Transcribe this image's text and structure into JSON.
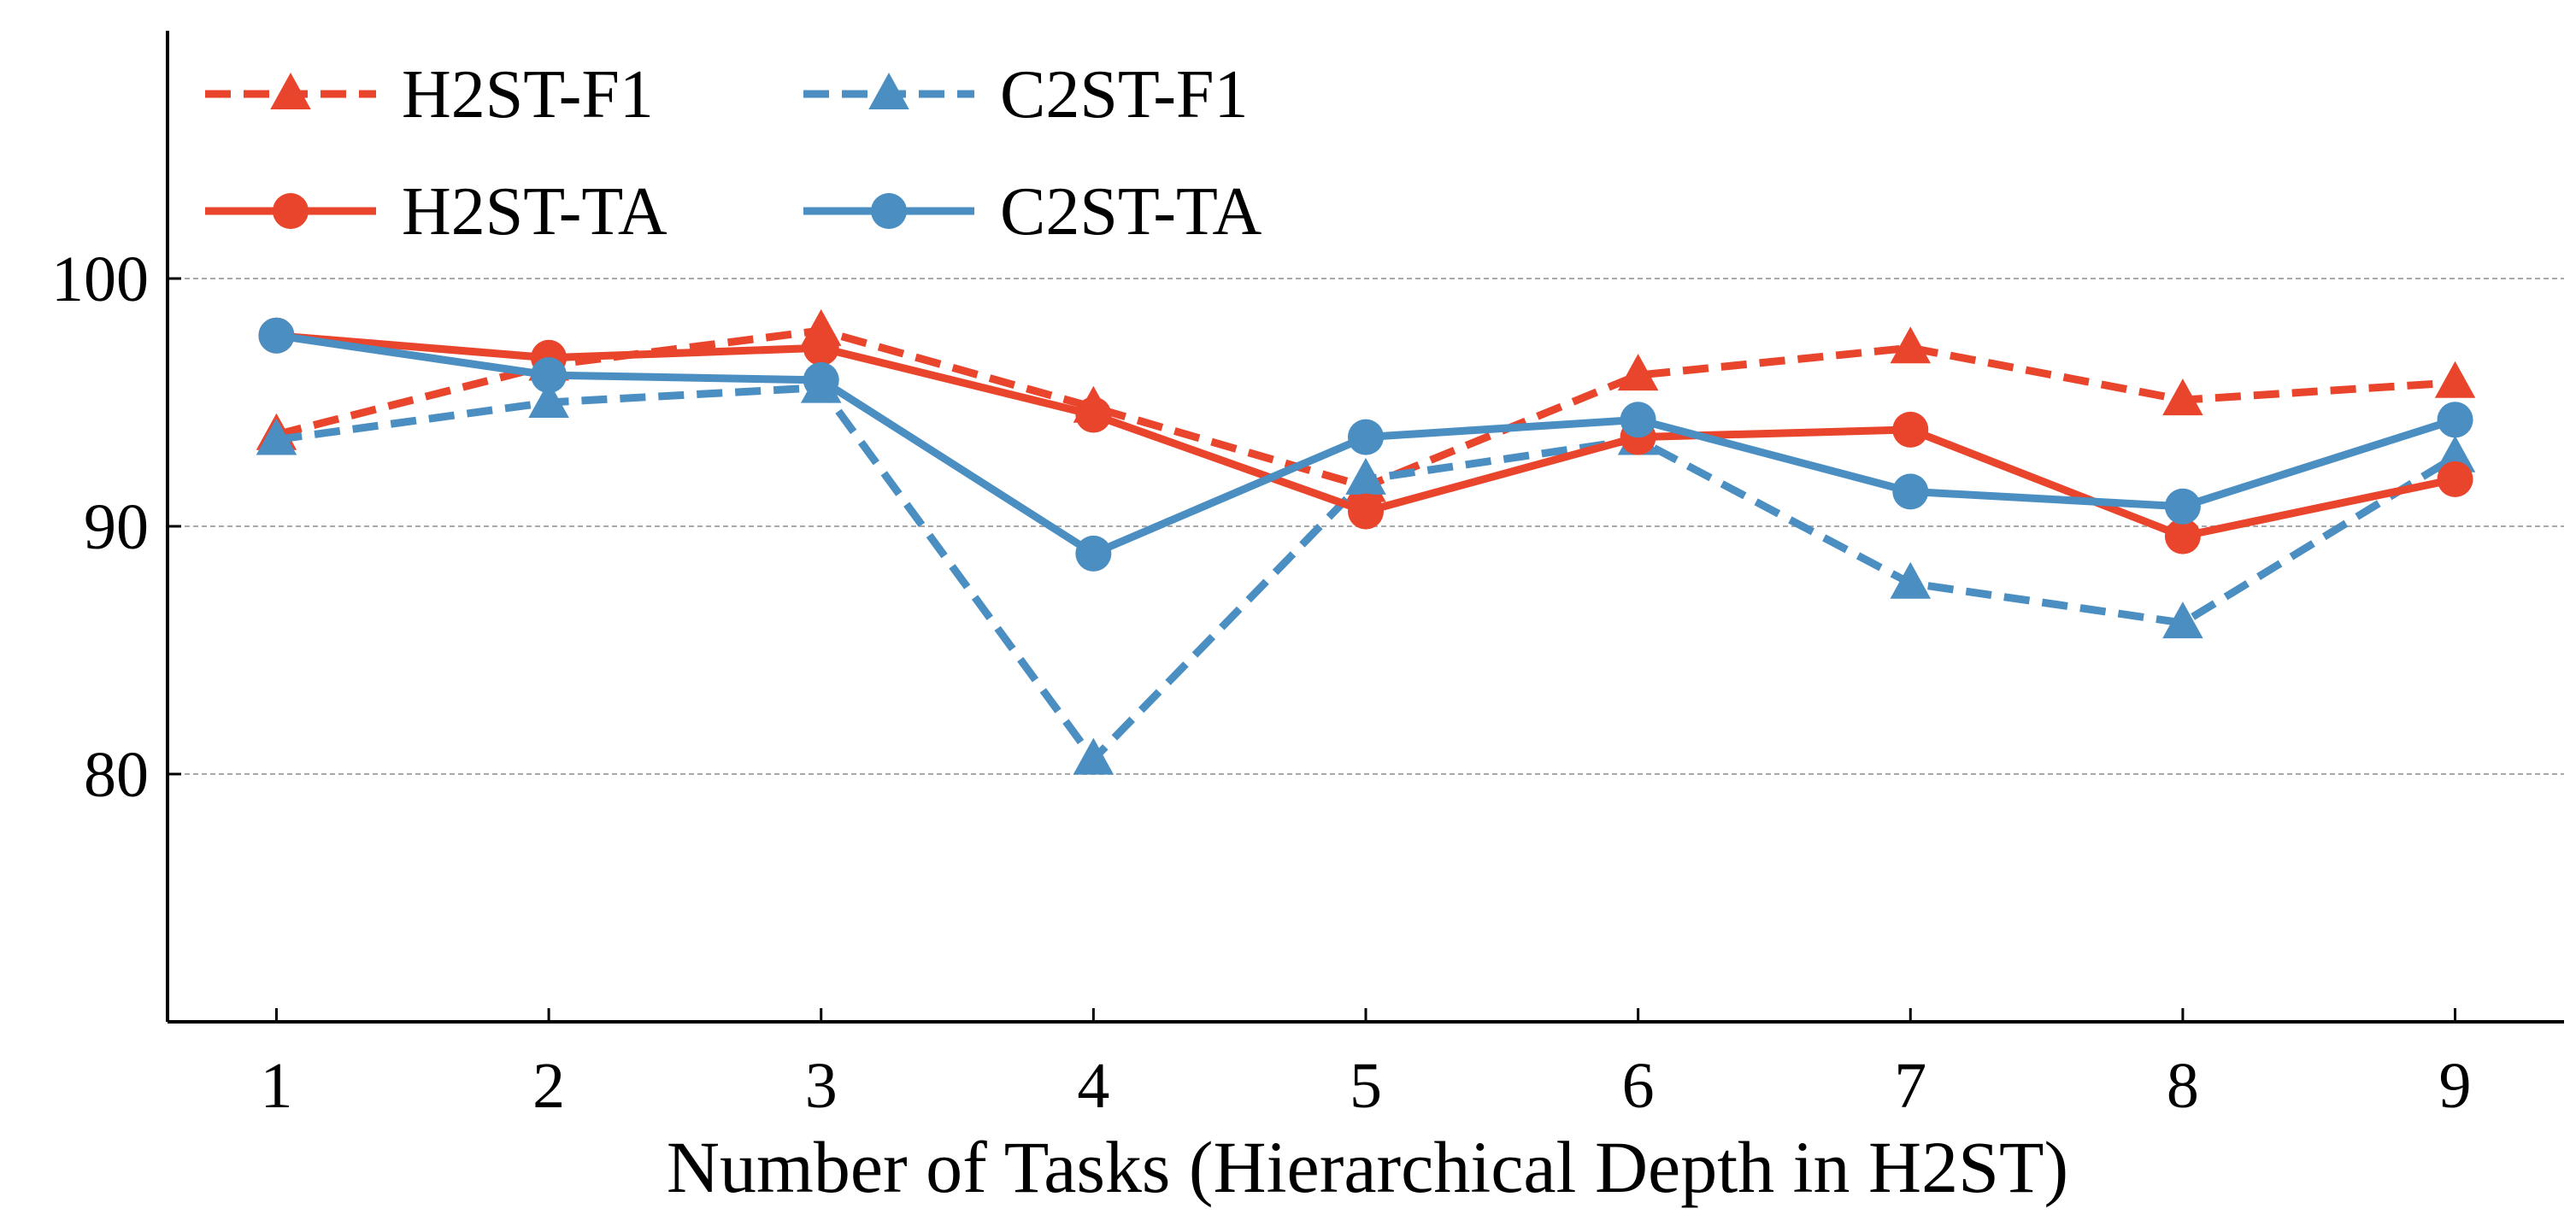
{
  "chart_data": {
    "type": "line",
    "title": "",
    "xlabel": "Number of Tasks (Hierarchical Depth in H2ST)",
    "ylabel": "",
    "x": [
      1,
      2,
      3,
      4,
      5,
      6,
      7,
      8,
      9
    ],
    "x_tick_labels": [
      "1",
      "2",
      "3",
      "4",
      "5",
      "6",
      "7",
      "8",
      "9"
    ],
    "xlim": [
      0.6,
      9.4
    ],
    "ylim": [
      70,
      110
    ],
    "y_ticks": [
      80,
      90,
      100
    ],
    "y_tick_labels": [
      "80",
      "90",
      "100"
    ],
    "grid": "horizontal dashed at y ticks",
    "legend_position": "top-left",
    "series": [
      {
        "name": "H2ST-F1",
        "color": "#e8452c",
        "line_style": "dashed",
        "marker": "triangle",
        "values": [
          93.7,
          96.5,
          97.9,
          94.8,
          91.6,
          96.1,
          97.2,
          95.1,
          95.8
        ]
      },
      {
        "name": "C2ST-F1",
        "color": "#4a8ec2",
        "line_style": "dashed",
        "marker": "triangle",
        "values": [
          93.5,
          95.0,
          95.6,
          80.6,
          91.9,
          93.5,
          87.7,
          86.1,
          92.8
        ]
      },
      {
        "name": "H2ST-TA",
        "color": "#e8452c",
        "line_style": "solid",
        "marker": "circle",
        "values": [
          97.7,
          96.8,
          97.2,
          94.5,
          90.6,
          93.6,
          93.9,
          89.6,
          91.9
        ]
      },
      {
        "name": "C2ST-TA",
        "color": "#4a8ec2",
        "line_style": "solid",
        "marker": "circle",
        "values": [
          97.7,
          96.1,
          95.9,
          88.9,
          93.6,
          94.3,
          91.4,
          90.8,
          94.3
        ]
      }
    ]
  }
}
